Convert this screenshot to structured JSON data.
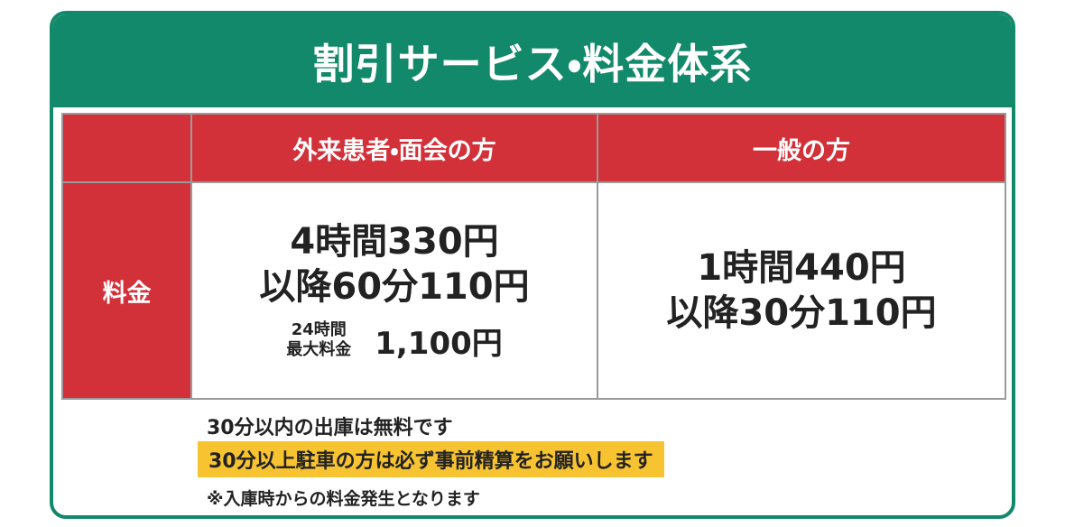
{
  "header": {
    "title": "割引サービス・料金体系"
  },
  "table": {
    "columns": [
      "外来患者・面会の方",
      "一般の方"
    ],
    "row_label": "料金",
    "outpatient": {
      "lines": [
        "4時間330円",
        "以降60分110円"
      ],
      "max_label": [
        "24時間",
        "最大料金"
      ],
      "max_value": "1,100円"
    },
    "general": {
      "lines": [
        "1時間440円",
        "以降30分110円"
      ]
    }
  },
  "notes": [
    "30分以内の出庫は無料です",
    "30分以上駐車の方は必ず事前精算をお願いします",
    "※入庫時からの料金発生となります"
  ]
}
